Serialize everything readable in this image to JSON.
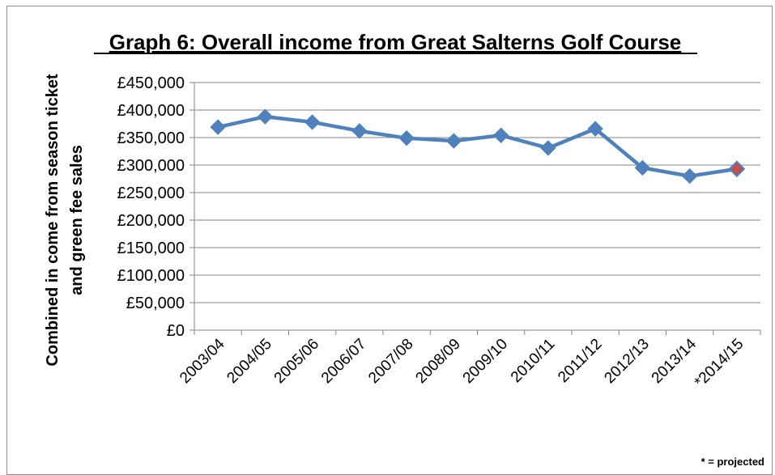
{
  "chart_data": {
    "type": "line",
    "title": "Graph 6: Overall income from Great Salterns Golf Course",
    "ylabel_lines": [
      "Combined in come from season ticket",
      "and green fee sales"
    ],
    "xlabel": "",
    "categories": [
      "2003/04",
      "2004/05",
      "2005/06",
      "2006/07",
      "2007/08",
      "2008/09",
      "2009/10",
      "2010/11",
      "2011/12",
      "2012/13",
      "2013/14",
      "*2014/15"
    ],
    "series": [
      {
        "values": [
          369000,
          388000,
          378000,
          362000,
          349000,
          344000,
          354000,
          331000,
          366000,
          295000,
          280000,
          293000
        ]
      }
    ],
    "ylim": [
      0,
      450000
    ],
    "yticks": [
      0,
      50000,
      100000,
      150000,
      200000,
      250000,
      300000,
      350000,
      400000,
      450000
    ],
    "ytick_labels": [
      "£0",
      "£50,000",
      "£100,000",
      "£150,000",
      "£200,000",
      "£250,000",
      "£300,000",
      "£350,000",
      "£400,000",
      "£450,000"
    ],
    "grid": true,
    "legend": "none",
    "note": "* = projected",
    "colors": {
      "line": "#4f81bd",
      "marker": "#4f81bd",
      "projected_marker": "#c0504d",
      "grid": "#868686",
      "axis": "#868686"
    }
  }
}
